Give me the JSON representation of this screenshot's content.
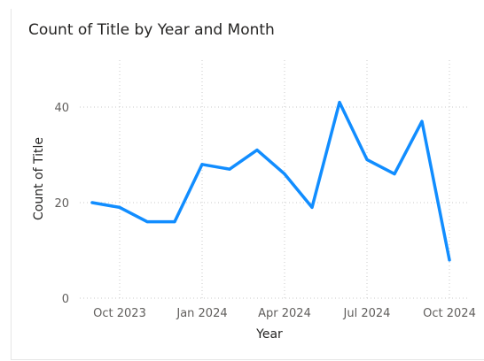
{
  "chart_data": {
    "type": "line",
    "title": "Count of Title by Year and Month",
    "xlabel": "Year",
    "ylabel": "Count of Title",
    "x": [
      "2023-09",
      "2023-10",
      "2023-11",
      "2023-12",
      "2024-01",
      "2024-02",
      "2024-03",
      "2024-04",
      "2024-05",
      "2024-06",
      "2024-07",
      "2024-08",
      "2024-09",
      "2024-10"
    ],
    "series": [
      {
        "values": [
          20,
          19,
          16,
          16,
          28,
          27,
          31,
          26,
          19,
          41,
          29,
          26,
          37,
          8
        ],
        "color": "#118DFF"
      }
    ],
    "x_ticks": [
      {
        "month": "2023-10",
        "label": "Oct 2023"
      },
      {
        "month": "2024-01",
        "label": "Jan 2024"
      },
      {
        "month": "2024-04",
        "label": "Apr 2024"
      },
      {
        "month": "2024-07",
        "label": "Jul 2024"
      },
      {
        "month": "2024-10",
        "label": "Oct 2024"
      }
    ],
    "y_ticks": [
      0,
      20,
      40
    ],
    "ylim": [
      0,
      49
    ],
    "grid": true
  }
}
